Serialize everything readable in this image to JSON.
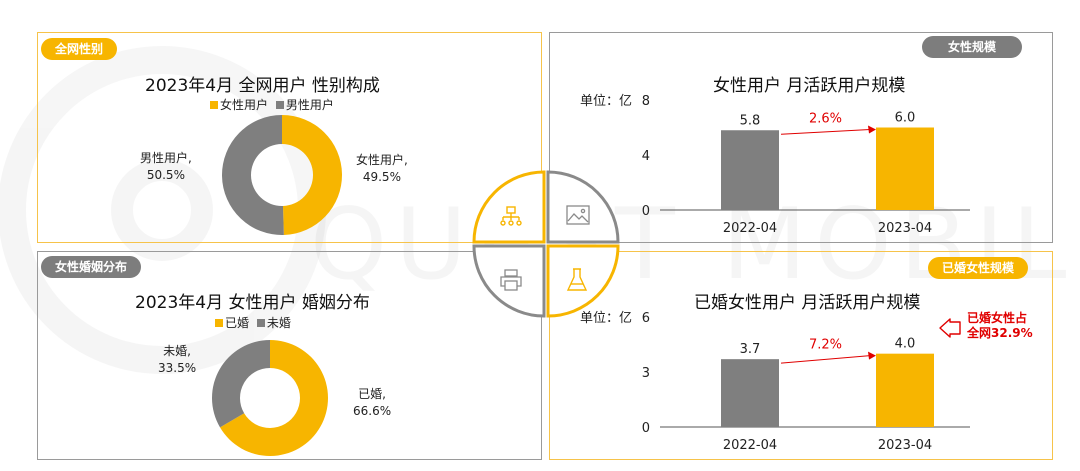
{
  "watermark": "QUEST MOBILE",
  "panels": {
    "gender": {
      "tag": "全网性别",
      "title": "2023年4月 全网用户 性别构成",
      "legend": [
        "女性用户",
        "男性用户"
      ],
      "labels": {
        "female": [
          "女性用户,",
          "49.5%"
        ],
        "male": [
          "男性用户,",
          "50.5%"
        ]
      }
    },
    "female_scale": {
      "tag": "女性规模",
      "title": "女性用户 月活跃用户规模",
      "unit": "单位：亿",
      "growth": "2.6%"
    },
    "marriage": {
      "tag": "女性婚姻分布",
      "title": "2023年4月 女性用户 婚姻分布",
      "legend": [
        "已婚",
        "未婚"
      ],
      "labels": {
        "married": [
          "已婚,",
          "66.6%"
        ],
        "unmarried": [
          "未婚,",
          "33.5%"
        ]
      }
    },
    "married_scale": {
      "tag": "已婚女性规模",
      "title": "已婚女性用户 月活跃用户规模",
      "unit": "单位：亿",
      "growth": "7.2%",
      "note": [
        "已婚女性占",
        "全网32.9%"
      ]
    }
  },
  "colors": {
    "yellow": "#f7b500",
    "gray": "#7f7f7f",
    "red": "#e00000",
    "border_yellow": "#f6c34a",
    "border_gray": "#9a9a9a"
  },
  "icons": [
    "org-chart-icon",
    "image-icon",
    "printer-icon",
    "flask-icon"
  ],
  "chart_data": [
    {
      "type": "pie",
      "title": "2023年4月 全网用户 性别构成",
      "categories": [
        "女性用户",
        "男性用户"
      ],
      "values": [
        49.5,
        50.5
      ],
      "colors": [
        "#f7b500",
        "#7f7f7f"
      ]
    },
    {
      "type": "bar",
      "title": "女性用户 月活跃用户规模",
      "categories": [
        "2022-04",
        "2023-04"
      ],
      "values": [
        5.8,
        6.0
      ],
      "ylabel": "单位：亿",
      "ylim": [
        0,
        8
      ],
      "yticks": [
        0,
        4,
        8
      ],
      "colors": [
        "#7f7f7f",
        "#f7b500"
      ]
    },
    {
      "type": "pie",
      "title": "2023年4月 女性用户 婚姻分布",
      "categories": [
        "已婚",
        "未婚"
      ],
      "values": [
        66.6,
        33.5
      ],
      "colors": [
        "#f7b500",
        "#7f7f7f"
      ]
    },
    {
      "type": "bar",
      "title": "已婚女性用户 月活跃用户规模",
      "categories": [
        "2022-04",
        "2023-04"
      ],
      "values": [
        3.7,
        4.0
      ],
      "ylabel": "单位：亿",
      "ylim": [
        0,
        6
      ],
      "yticks": [
        0,
        3,
        6
      ],
      "colors": [
        "#7f7f7f",
        "#f7b500"
      ]
    }
  ]
}
